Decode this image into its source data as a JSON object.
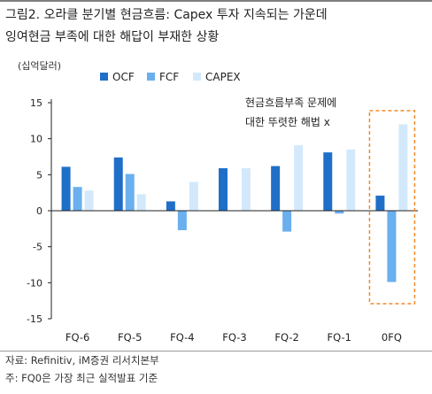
{
  "header": {
    "figure_label": "그림2.",
    "title": "오라클 분기별 현금흐름: Capex 투자 지속되는 가운데\n잉여현금 부족에 대한 해답이 부재한 상황"
  },
  "footer": {
    "source": "자료: Refinitiv, iM증권 리서치본부",
    "note": "주: FQ0은 가장 최근 실적발표 기준"
  },
  "colors": {
    "ocf": "#1f6fc8",
    "fcf": "#6aafee",
    "capex": "#d3e9fb",
    "highlight_box": "#f08a2a",
    "axis": "#222222"
  },
  "chart_data": {
    "type": "bar",
    "unit_label": "(십억달러)",
    "categories": [
      "FQ-6",
      "FQ-5",
      "FQ-4",
      "FQ-3",
      "FQ-2",
      "FQ-1",
      "0FQ"
    ],
    "series": [
      {
        "name": "OCF",
        "values": [
          6.1,
          7.4,
          1.3,
          5.9,
          6.2,
          8.1,
          2.1
        ]
      },
      {
        "name": "FCF",
        "values": [
          3.3,
          5.1,
          -2.7,
          0,
          -2.9,
          -0.4,
          -9.9
        ]
      },
      {
        "name": "CAPEX",
        "values": [
          2.8,
          2.3,
          4.0,
          5.9,
          9.1,
          8.5,
          12.0
        ]
      }
    ],
    "ylim": [
      -15,
      15
    ],
    "yticks": [
      -15,
      -10,
      -5,
      0,
      5,
      10,
      15
    ],
    "legend_position": "top-center",
    "grid": false,
    "annotation": {
      "lines": [
        "현금흐름부족 문제에",
        "대한 뚜렷한 해법 x"
      ],
      "highlight_category": "0FQ"
    }
  }
}
